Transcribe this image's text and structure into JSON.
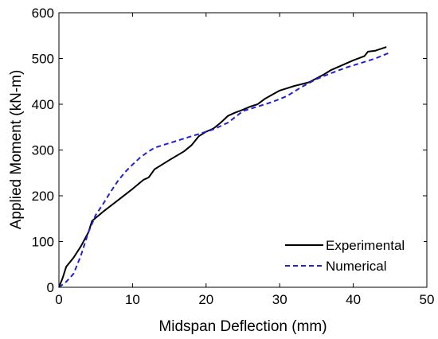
{
  "chart_data": {
    "type": "line",
    "xlabel": "Midspan Deflection (mm)",
    "ylabel": "Applied Moment (kN-m)",
    "xlim": [
      0,
      50
    ],
    "ylim": [
      0,
      600
    ],
    "xticks": [
      0,
      10,
      20,
      30,
      40,
      50
    ],
    "yticks": [
      0,
      100,
      200,
      300,
      400,
      500,
      600
    ],
    "grid": false,
    "legend_position": "bottom-right",
    "series": [
      {
        "name": "Experimental",
        "color": "#000000",
        "style": "solid",
        "x": [
          0,
          0.5,
          1,
          2,
          3,
          4,
          4.5,
          6,
          8,
          10,
          11.5,
          12.2,
          13,
          15,
          17,
          18,
          19,
          20,
          21,
          22,
          23,
          24,
          25,
          26,
          27,
          28,
          29,
          30,
          32,
          34,
          36,
          37,
          38,
          40,
          41.5,
          42,
          43,
          44.5
        ],
        "y": [
          0,
          20,
          45,
          65,
          90,
          120,
          145,
          165,
          190,
          215,
          235,
          240,
          258,
          278,
          297,
          310,
          330,
          340,
          347,
          360,
          375,
          382,
          388,
          395,
          400,
          412,
          421,
          430,
          440,
          448,
          465,
          475,
          482,
          496,
          505,
          515,
          517,
          525
        ]
      },
      {
        "name": "Numerical",
        "color": "#1f1fdc",
        "style": "dashed",
        "x": [
          0,
          1,
          2,
          3,
          4,
          5,
          6,
          7,
          8,
          9,
          10,
          11,
          12,
          13,
          14,
          15,
          17,
          19,
          21,
          23,
          25,
          27,
          29,
          31,
          33,
          35,
          37,
          39,
          41,
          43,
          45
        ],
        "y": [
          0,
          12,
          30,
          70,
          120,
          158,
          182,
          208,
          232,
          252,
          268,
          283,
          295,
          305,
          310,
          315,
          325,
          335,
          345,
          360,
          385,
          395,
          405,
          418,
          438,
          455,
          468,
          480,
          490,
          500,
          513
        ]
      }
    ]
  }
}
